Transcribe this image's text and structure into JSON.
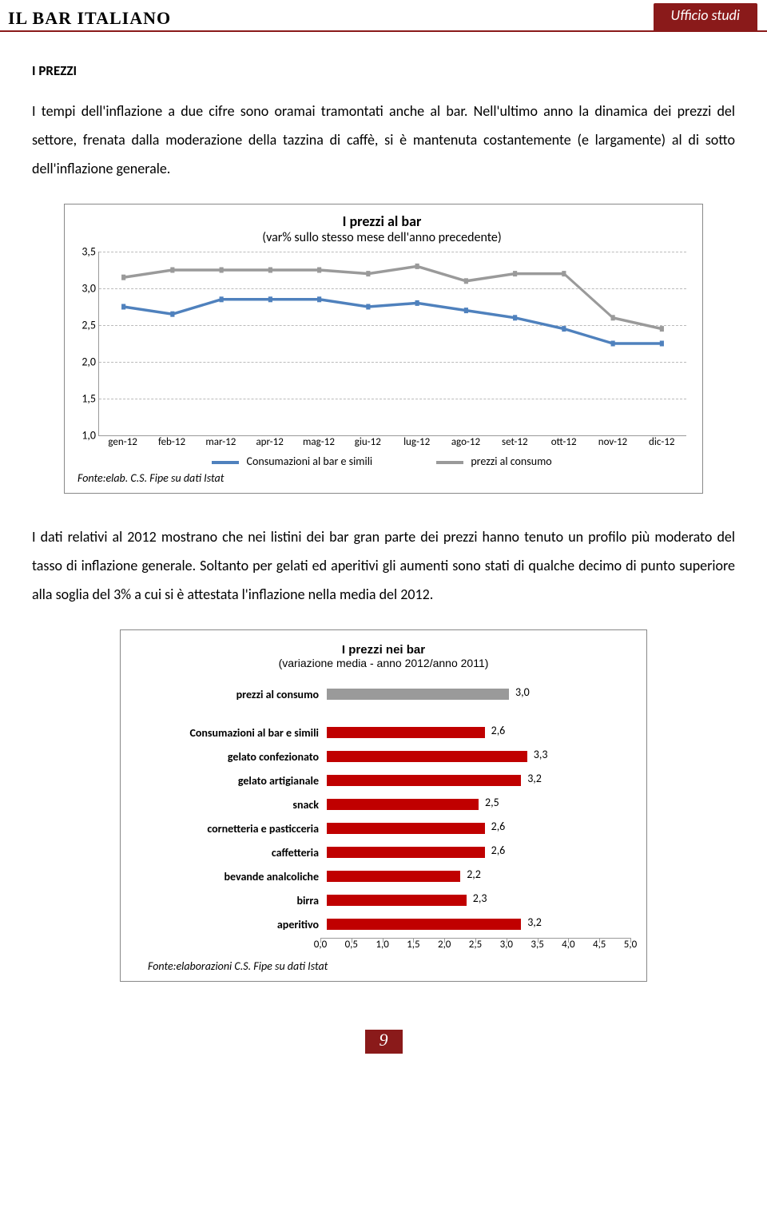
{
  "header": {
    "brand": "IL BAR ITALIANO",
    "office": "Ufficio studi"
  },
  "section_title": "I PREZZI",
  "para1": "I tempi dell'inflazione a due cifre sono oramai tramontati anche al bar. Nell'ultimo anno la dinamica dei prezzi del settore, frenata dalla moderazione della tazzina di caffè, si è mantenuta costantemente (e largamente) al di sotto dell'inflazione generale.",
  "chart1": {
    "type": "line",
    "title": "I prezzi al bar",
    "subtitle": "(var% sullo stesso mese dell'anno precedente)",
    "x_labels": [
      "gen-12",
      "feb-12",
      "mar-12",
      "apr-12",
      "mag-12",
      "giu-12",
      "lug-12",
      "ago-12",
      "set-12",
      "ott-12",
      "nov-12",
      "dic-12"
    ],
    "y_ticks": [
      "1,0",
      "1,5",
      "2,0",
      "2,5",
      "3,0",
      "3,5"
    ],
    "ylim": [
      1.0,
      3.5
    ],
    "series": [
      {
        "name": "Consumazioni al bar e simili",
        "color": "#4f81bd",
        "marker": "square",
        "values": [
          2.75,
          2.65,
          2.85,
          2.85,
          2.85,
          2.75,
          2.8,
          2.7,
          2.6,
          2.45,
          2.25,
          2.25
        ]
      },
      {
        "name": "prezzi al consumo",
        "color": "#9a9a9a",
        "marker": "square",
        "values": [
          3.15,
          3.25,
          3.25,
          3.25,
          3.25,
          3.2,
          3.3,
          3.1,
          3.2,
          3.2,
          2.6,
          2.45
        ]
      }
    ],
    "grid_color": "#bbbbbb",
    "line_width": 3.5,
    "marker_size": 7,
    "source": "Fonte:elab. C.S. Fipe su dati Istat",
    "legend1": "Consumazioni al bar e simili",
    "legend2": "prezzi al consumo"
  },
  "para2": "I dati relativi al 2012 mostrano che nei listini dei bar gran parte dei prezzi hanno tenuto un profilo più moderato del tasso di inflazione generale. Soltanto per gelati ed aperitivi gli aumenti sono stati di qualche decimo di punto superiore alla soglia del 3% a cui si è attestata l'inflazione nella media del 2012.",
  "chart2": {
    "type": "bar-horizontal",
    "title": "I prezzi nei bar",
    "subtitle": "(variazione media - anno 2012/anno 2011)",
    "xlim": [
      0.0,
      5.0
    ],
    "x_ticks": [
      "0,0",
      "0,5",
      "1,0",
      "1,5",
      "2,0",
      "2,5",
      "3,0",
      "3,5",
      "4,0",
      "4,5",
      "5,0"
    ],
    "top_row": {
      "label": "prezzi al consumo",
      "value": 3.0,
      "value_label": "3,0",
      "color": "#9a9a9a"
    },
    "rows": [
      {
        "label": "Consumazioni al bar e simili",
        "value": 2.6,
        "value_label": "2,6",
        "color": "#c00000"
      },
      {
        "label": "gelato confezionato",
        "value": 3.3,
        "value_label": "3,3",
        "color": "#c00000"
      },
      {
        "label": "gelato artigianale",
        "value": 3.2,
        "value_label": "3,2",
        "color": "#c00000"
      },
      {
        "label": "snack",
        "value": 2.5,
        "value_label": "2,5",
        "color": "#c00000"
      },
      {
        "label": "cornetteria e pasticceria",
        "value": 2.6,
        "value_label": "2,6",
        "color": "#c00000"
      },
      {
        "label": "caffetteria",
        "value": 2.6,
        "value_label": "2,6",
        "color": "#c00000"
      },
      {
        "label": "bevande analcoliche",
        "value": 2.2,
        "value_label": "2,2",
        "color": "#c00000"
      },
      {
        "label": "birra",
        "value": 2.3,
        "value_label": "2,3",
        "color": "#c00000"
      },
      {
        "label": "aperitivo",
        "value": 3.2,
        "value_label": "3,2",
        "color": "#c00000"
      }
    ],
    "source": "Fonte:elaborazioni C.S. Fipe su dati Istat"
  },
  "page_number": "9"
}
